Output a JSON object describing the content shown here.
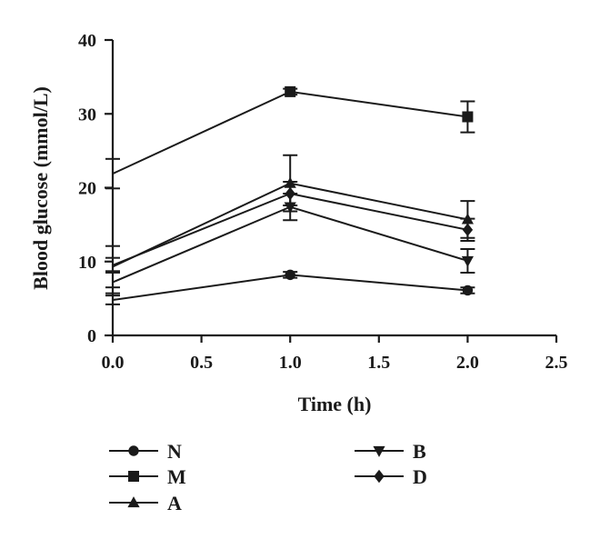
{
  "chart_data": {
    "type": "line",
    "xlabel": "Time (h)",
    "ylabel": "Blood glucose (mmol/L)",
    "xlim": [
      0,
      2.5
    ],
    "ylim": [
      0,
      40
    ],
    "xticks": [
      "0.0",
      "0.5",
      "1.0",
      "1.5",
      "2.0",
      "2.5"
    ],
    "yticks": [
      "0",
      "10",
      "20",
      "30",
      "40"
    ],
    "grid": false,
    "legend": "bottom",
    "x": [
      0,
      1,
      2
    ],
    "series": [
      {
        "name": "N",
        "marker": "circle",
        "values": [
          4.8,
          8.2,
          6.1
        ],
        "errors": [
          0.6,
          0.4,
          0.4
        ]
      },
      {
        "name": "M",
        "marker": "square",
        "values": [
          21.9,
          33.0,
          29.6
        ],
        "errors": [
          2.0,
          0.4,
          2.1
        ]
      },
      {
        "name": "A",
        "marker": "triangle-up",
        "values": [
          9.3,
          20.6,
          15.7
        ],
        "errors": [
          2.8,
          3.8,
          2.5
        ]
      },
      {
        "name": "B",
        "marker": "triangle-down",
        "values": [
          7.2,
          17.4,
          10.1
        ],
        "errors": [
          1.5,
          1.8,
          1.6
        ]
      },
      {
        "name": "D",
        "marker": "diamond",
        "values": [
          9.5,
          19.2,
          14.3
        ],
        "errors": [
          1.0,
          1.6,
          1.5
        ]
      }
    ]
  }
}
